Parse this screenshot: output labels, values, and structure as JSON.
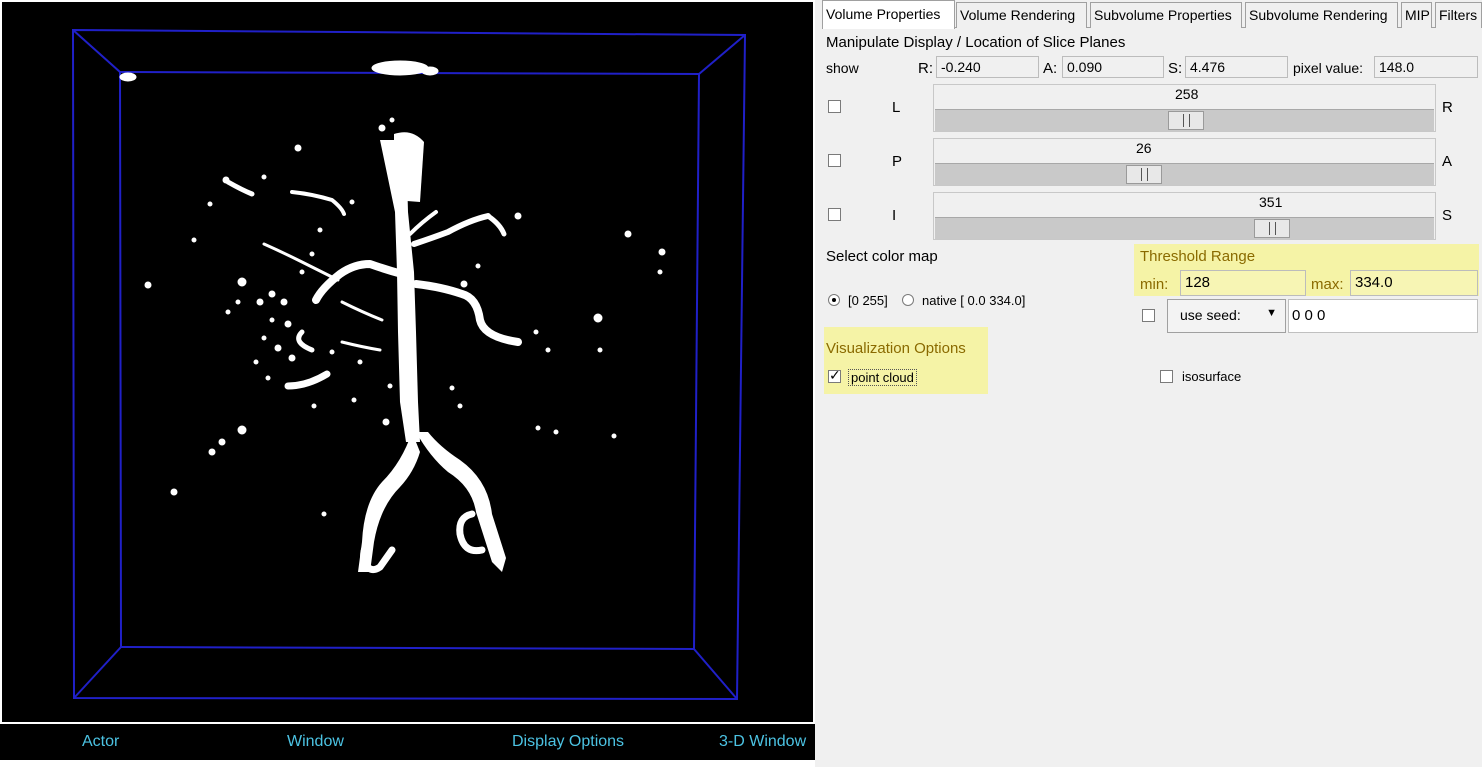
{
  "viewer": {
    "bottom_bar": {
      "actor": "Actor",
      "window": "Window",
      "display_options": "Display Options",
      "three_d_window": "3-D Window"
    }
  },
  "tabs": [
    {
      "label": "Volume Properties",
      "active": true
    },
    {
      "label": "Volume Rendering"
    },
    {
      "label": "Subvolume Properties"
    },
    {
      "label": "Subvolume Rendering"
    },
    {
      "label": "MIP"
    },
    {
      "label": "Filters"
    }
  ],
  "slice_planes": {
    "title": "Manipulate Display / Location of Slice Planes",
    "show_label": "show",
    "r_label": "R:",
    "r_value": "-0.240",
    "a_label": "A:",
    "a_value": "0.090",
    "s_label": "S:",
    "s_value": "4.476",
    "pixel_label": "pixel value:",
    "pixel_value": "148.0",
    "sliders": [
      {
        "left": "L",
        "right": "R",
        "value": "258",
        "fraction": 0.5
      },
      {
        "left": "P",
        "right": "A",
        "value": "26",
        "fraction": 0.42
      },
      {
        "left": "I",
        "right": "S",
        "value": "351",
        "fraction": 0.67
      }
    ]
  },
  "color_map": {
    "title": "Select color map",
    "option_1": "[0 255]",
    "option_2": "native [ 0.0 334.0]"
  },
  "threshold": {
    "title": "Threshold Range",
    "min_label": "min:",
    "min_value": "128",
    "max_label": "max:",
    "max_value": "334.0",
    "seed_button": "use seed:",
    "seed_value": "0 0 0"
  },
  "visualization": {
    "title": "Visualization Options",
    "point_cloud": "point cloud",
    "isosurface": "isosurface"
  },
  "colors": {
    "bounding_box": "#2020c8",
    "bottom_bar_text": "#4cc3e3",
    "highlight": "#f5f3a6"
  }
}
